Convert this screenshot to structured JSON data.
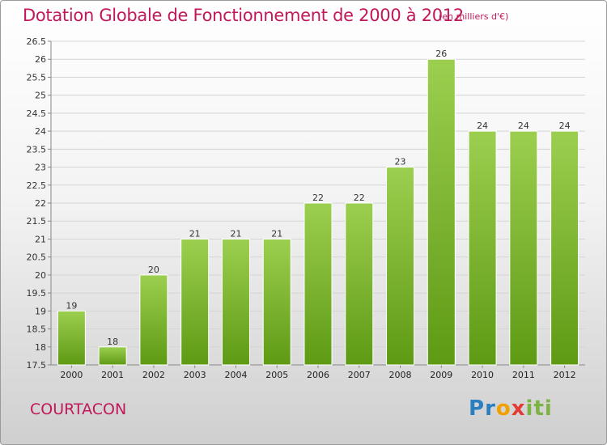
{
  "title": "Dotation Globale de Fonctionnement de 2000 à 2012",
  "unit": "(en milliers d'€)",
  "commune": "COURTACON",
  "logo": {
    "letters": [
      "P",
      "r",
      "o",
      "x",
      "i",
      "t",
      "i"
    ],
    "colors": [
      "#2a7fc1",
      "#2a7fc1",
      "#f0a000",
      "#e53935",
      "#7cb342",
      "#7cb342",
      "#7cb342"
    ]
  },
  "chart_data": {
    "type": "bar",
    "title": "Dotation Globale de Fonctionnement de 2000 à 2012",
    "xlabel": "",
    "ylabel": "",
    "categories": [
      "2000",
      "2001",
      "2002",
      "2003",
      "2004",
      "2005",
      "2006",
      "2007",
      "2008",
      "2009",
      "2010",
      "2011",
      "2012"
    ],
    "values": [
      19,
      18,
      20,
      21,
      21,
      21,
      22,
      22,
      23,
      26,
      24,
      24,
      24
    ],
    "data_labels": [
      "19",
      "18",
      "20",
      "21",
      "21",
      "21",
      "22",
      "22",
      "23",
      "26",
      "24",
      "24",
      "24"
    ],
    "ylim": [
      17.5,
      26.5
    ],
    "yticks": [
      17.5,
      18,
      18.5,
      19,
      19.5,
      20,
      20.5,
      21,
      21.5,
      22,
      22.5,
      23,
      23.5,
      24,
      24.5,
      25,
      25.5,
      26,
      26.5
    ],
    "grid": true,
    "bar_color_top": "#9ccf4f",
    "bar_color_bottom": "#5e9a14"
  }
}
